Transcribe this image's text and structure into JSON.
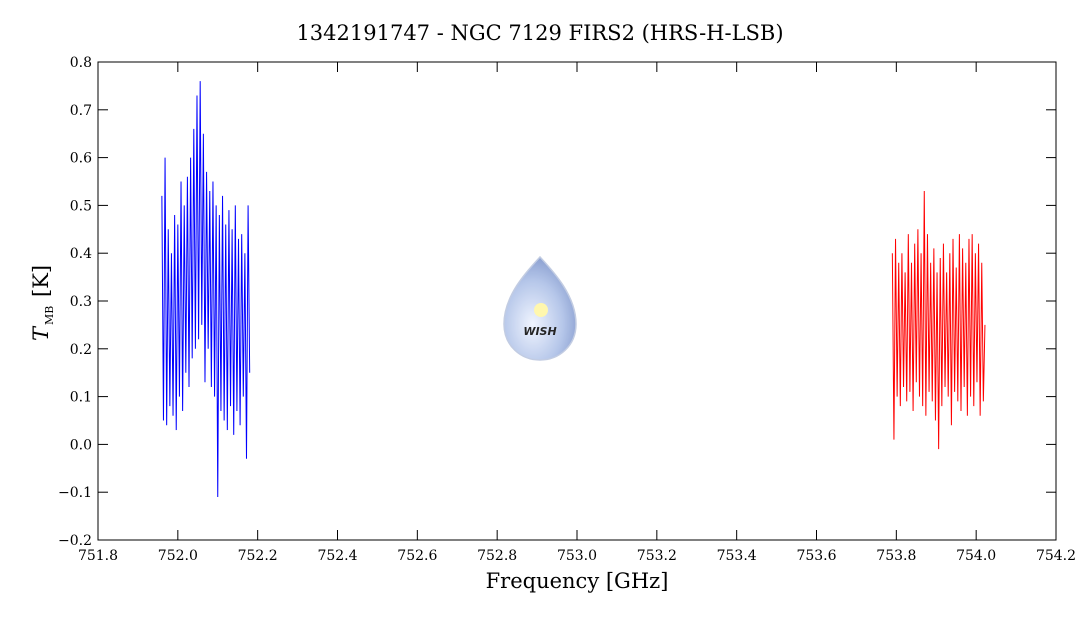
{
  "chart_data": {
    "type": "line",
    "title": "1342191747 - NGC 7129 FIRS2 (HRS-H-LSB)",
    "xlabel": "Frequency [GHz]",
    "ylabel": {
      "symbol": "T",
      "subscript": "MB",
      "unit": "[K]"
    },
    "watermark": "WISH",
    "xlim": [
      751.8,
      754.2
    ],
    "ylim": [
      -0.2,
      0.8
    ],
    "xticks": [
      751.8,
      {
        "value": 752,
        "label": "752.0"
      },
      752.2,
      752.4,
      752.6,
      752.8,
      {
        "value": 753,
        "label": "753.0"
      },
      753.2,
      753.4,
      753.6,
      753.8,
      {
        "value": 754,
        "label": "754.0"
      },
      754.2
    ],
    "yticks": [
      {
        "value": -0.2,
        "label": "−0.2"
      },
      {
        "value": -0.1,
        "label": "−0.1"
      },
      {
        "value": 0,
        "label": "0.0"
      },
      0.1,
      0.2,
      0.3,
      0.4,
      0.5,
      0.6,
      0.7,
      0.8
    ],
    "series": [
      {
        "color": "#0000ff",
        "x": [
          751.96,
          751.964,
          751.968,
          751.972,
          751.976,
          751.98,
          751.984,
          751.988,
          751.992,
          751.996,
          752.0,
          752.004,
          752.008,
          752.012,
          752.016,
          752.02,
          752.024,
          752.028,
          752.032,
          752.036,
          752.04,
          752.044,
          752.048,
          752.052,
          752.056,
          752.06,
          752.064,
          752.068,
          752.072,
          752.076,
          752.08,
          752.084,
          752.088,
          752.092,
          752.096,
          752.1,
          752.104,
          752.108,
          752.112,
          752.116,
          752.12,
          752.124,
          752.128,
          752.132,
          752.136,
          752.14,
          752.144,
          752.148,
          752.152,
          752.156,
          752.16,
          752.164,
          752.168,
          752.172,
          752.176,
          752.18
        ],
        "values": [
          0.52,
          0.05,
          0.6,
          0.04,
          0.45,
          0.08,
          0.4,
          0.06,
          0.48,
          0.03,
          0.46,
          0.1,
          0.55,
          0.07,
          0.5,
          0.15,
          0.56,
          0.12,
          0.6,
          0.18,
          0.66,
          0.2,
          0.73,
          0.22,
          0.76,
          0.25,
          0.65,
          0.13,
          0.57,
          0.2,
          0.53,
          0.12,
          0.55,
          0.1,
          0.5,
          -0.11,
          0.48,
          0.07,
          0.52,
          0.05,
          0.46,
          0.03,
          0.49,
          0.08,
          0.45,
          0.02,
          0.5,
          0.07,
          0.43,
          0.04,
          0.44,
          0.1,
          0.4,
          -0.03,
          0.5,
          0.15
        ]
      },
      {
        "color": "#ff0000",
        "x": [
          753.79,
          753.794,
          753.798,
          753.802,
          753.806,
          753.81,
          753.814,
          753.818,
          753.822,
          753.826,
          753.83,
          753.834,
          753.838,
          753.842,
          753.846,
          753.85,
          753.854,
          753.858,
          753.862,
          753.866,
          753.87,
          753.874,
          753.878,
          753.882,
          753.886,
          753.89,
          753.894,
          753.898,
          753.902,
          753.906,
          753.91,
          753.914,
          753.918,
          753.922,
          753.926,
          753.93,
          753.934,
          753.938,
          753.942,
          753.946,
          753.95,
          753.954,
          753.958,
          753.962,
          753.966,
          753.97,
          753.974,
          753.978,
          753.982,
          753.986,
          753.99,
          753.994,
          753.998,
          754.002,
          754.006,
          754.01,
          754.014,
          754.018,
          754.022
        ],
        "values": [
          0.4,
          0.01,
          0.43,
          0.1,
          0.38,
          0.08,
          0.4,
          0.12,
          0.36,
          0.09,
          0.44,
          0.11,
          0.38,
          0.07,
          0.42,
          0.13,
          0.45,
          0.1,
          0.4,
          0.08,
          0.53,
          0.06,
          0.44,
          0.11,
          0.38,
          0.09,
          0.41,
          0.05,
          0.36,
          -0.01,
          0.39,
          0.08,
          0.42,
          0.12,
          0.36,
          0.1,
          0.4,
          0.04,
          0.43,
          0.11,
          0.37,
          0.09,
          0.44,
          0.07,
          0.41,
          0.12,
          0.38,
          0.06,
          0.43,
          0.1,
          0.44,
          0.08,
          0.4,
          0.13,
          0.42,
          0.06,
          0.38,
          0.09,
          0.25
        ]
      }
    ]
  }
}
